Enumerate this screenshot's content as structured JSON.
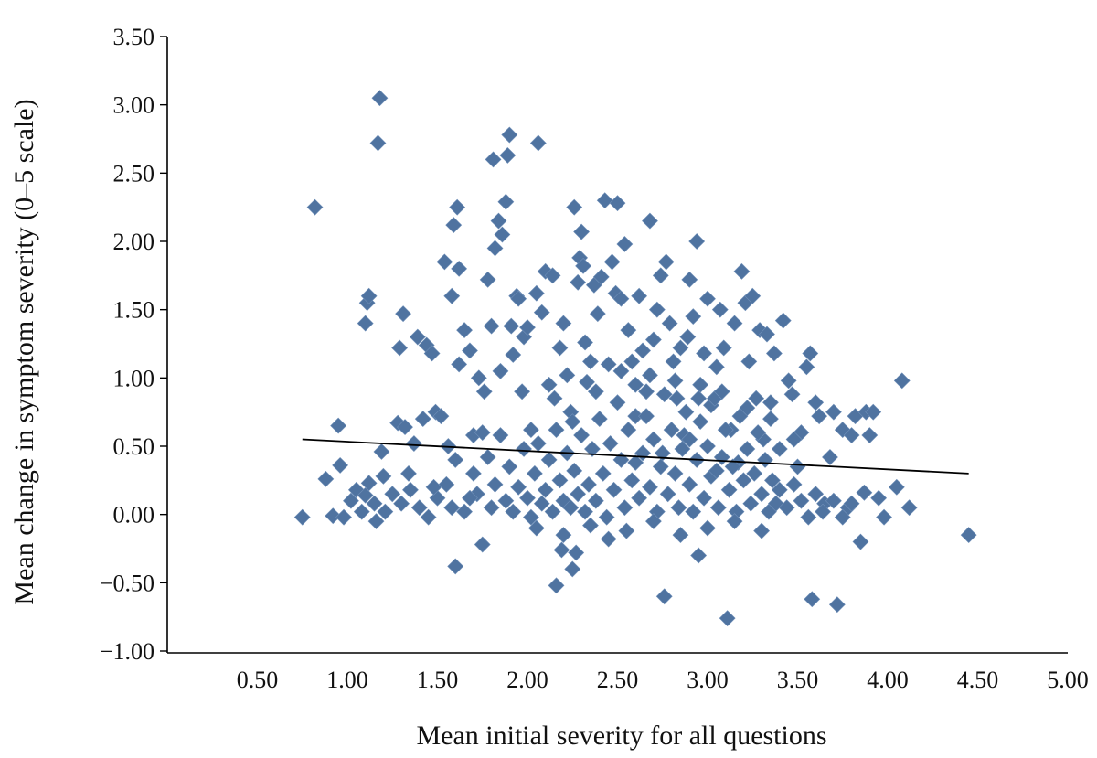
{
  "chart_data": {
    "type": "scatter",
    "title": "",
    "xlabel": "Mean initial severity for all questions",
    "ylabel": "Mean change in symptom severity (0–5 scale)",
    "xlim": [
      0,
      5
    ],
    "ylim": [
      -1,
      3.5
    ],
    "x_ticks": [
      "0.50",
      "1.00",
      "1.50",
      "2.00",
      "2.50",
      "3.00",
      "3.50",
      "4.00",
      "4.50",
      "5.00"
    ],
    "y_ticks": [
      "3.50",
      "3.00",
      "2.50",
      "2.00",
      "1.50",
      "1.00",
      "0.50",
      "0.00",
      "−0.50",
      "−1.00"
    ],
    "grid": false,
    "legend": "none",
    "colors": {
      "marker": "#4f73a0",
      "trendline": "#000000",
      "axis": "#000000"
    },
    "trendline": {
      "x": [
        0.75,
        4.45
      ],
      "y": [
        0.55,
        0.3
      ]
    },
    "series": [
      {
        "points": [
          [
            0.75,
            -0.02
          ],
          [
            0.82,
            2.25
          ],
          [
            0.88,
            0.26
          ],
          [
            0.92,
            -0.01
          ],
          [
            0.95,
            0.65
          ],
          [
            0.96,
            0.36
          ],
          [
            0.98,
            -0.02
          ],
          [
            1.02,
            0.1
          ],
          [
            1.05,
            0.18
          ],
          [
            1.08,
            0.02
          ],
          [
            1.1,
            0.14
          ],
          [
            1.1,
            1.4
          ],
          [
            1.11,
            1.55
          ],
          [
            1.12,
            1.6
          ],
          [
            1.12,
            0.23
          ],
          [
            1.15,
            0.08
          ],
          [
            1.16,
            -0.05
          ],
          [
            1.17,
            2.72
          ],
          [
            1.18,
            3.05
          ],
          [
            1.19,
            0.46
          ],
          [
            1.21,
            0.02
          ],
          [
            1.25,
            0.15
          ],
          [
            1.28,
            0.67
          ],
          [
            1.29,
            1.22
          ],
          [
            1.31,
            1.47
          ],
          [
            1.32,
            0.64
          ],
          [
            1.34,
            0.3
          ],
          [
            1.37,
            0.52
          ],
          [
            1.39,
            1.3
          ],
          [
            1.42,
            0.7
          ],
          [
            1.44,
            1.24
          ],
          [
            1.47,
            1.18
          ],
          [
            1.49,
            0.75
          ],
          [
            1.52,
            0.72
          ],
          [
            1.54,
            1.85
          ],
          [
            1.56,
            0.5
          ],
          [
            1.58,
            1.6
          ],
          [
            1.59,
            2.12
          ],
          [
            1.6,
            -0.38
          ],
          [
            1.61,
            2.25
          ],
          [
            1.62,
            1.8
          ],
          [
            1.62,
            1.1
          ],
          [
            1.65,
            1.35
          ],
          [
            1.68,
            1.2
          ],
          [
            1.7,
            0.58
          ],
          [
            1.73,
            1.0
          ],
          [
            1.75,
            -0.22
          ],
          [
            1.76,
            0.9
          ],
          [
            1.78,
            1.72
          ],
          [
            1.8,
            1.38
          ],
          [
            1.81,
            2.6
          ],
          [
            1.82,
            1.95
          ],
          [
            1.84,
            2.15
          ],
          [
            1.85,
            1.05
          ],
          [
            1.86,
            2.05
          ],
          [
            1.88,
            2.29
          ],
          [
            1.89,
            2.63
          ],
          [
            1.9,
            2.78
          ],
          [
            1.91,
            1.38
          ],
          [
            1.92,
            1.17
          ],
          [
            1.94,
            1.6
          ],
          [
            1.95,
            1.58
          ],
          [
            1.97,
            0.9
          ],
          [
            1.98,
            1.3
          ],
          [
            2.0,
            1.37
          ],
          [
            2.02,
            0.62
          ],
          [
            2.05,
            1.62
          ],
          [
            2.06,
            2.72
          ],
          [
            2.08,
            1.48
          ],
          [
            2.1,
            1.78
          ],
          [
            2.12,
            0.95
          ],
          [
            2.14,
            1.75
          ],
          [
            2.16,
            -0.52
          ],
          [
            2.18,
            1.22
          ],
          [
            2.19,
            -0.26
          ],
          [
            2.2,
            1.4
          ],
          [
            2.22,
            1.02
          ],
          [
            2.24,
            0.75
          ],
          [
            2.25,
            -0.4
          ],
          [
            2.26,
            2.25
          ],
          [
            2.27,
            -0.28
          ],
          [
            2.28,
            1.7
          ],
          [
            2.29,
            1.88
          ],
          [
            2.3,
            2.07
          ],
          [
            2.31,
            1.82
          ],
          [
            2.32,
            1.26
          ],
          [
            2.33,
            0.97
          ],
          [
            2.35,
            1.12
          ],
          [
            2.37,
            1.68
          ],
          [
            2.39,
            1.47
          ],
          [
            2.41,
            1.74
          ],
          [
            2.43,
            2.3
          ],
          [
            2.45,
            1.1
          ],
          [
            2.47,
            1.85
          ],
          [
            2.49,
            1.62
          ],
          [
            2.5,
            2.28
          ],
          [
            2.52,
            1.58
          ],
          [
            2.54,
            1.98
          ],
          [
            2.56,
            1.35
          ],
          [
            2.58,
            1.12
          ],
          [
            2.6,
            0.72
          ],
          [
            2.62,
            1.6
          ],
          [
            2.64,
            1.2
          ],
          [
            2.66,
            0.9
          ],
          [
            2.68,
            2.15
          ],
          [
            2.7,
            1.28
          ],
          [
            2.72,
            1.5
          ],
          [
            2.74,
            1.75
          ],
          [
            2.76,
            -0.6
          ],
          [
            2.77,
            1.85
          ],
          [
            2.79,
            1.4
          ],
          [
            2.81,
            1.12
          ],
          [
            2.83,
            0.85
          ],
          [
            2.85,
            1.22
          ],
          [
            2.87,
            0.58
          ],
          [
            2.89,
            1.3
          ],
          [
            2.9,
            1.72
          ],
          [
            2.92,
            1.45
          ],
          [
            2.94,
            2.0
          ],
          [
            2.95,
            -0.3
          ],
          [
            2.96,
            0.95
          ],
          [
            2.98,
            1.18
          ],
          [
            3.0,
            1.58
          ],
          [
            3.02,
            0.8
          ],
          [
            3.05,
            1.08
          ],
          [
            3.07,
            1.5
          ],
          [
            3.09,
            1.22
          ],
          [
            3.11,
            -0.76
          ],
          [
            3.13,
            0.62
          ],
          [
            3.15,
            1.4
          ],
          [
            3.17,
            0.38
          ],
          [
            3.19,
            1.78
          ],
          [
            3.21,
            1.55
          ],
          [
            3.23,
            1.12
          ],
          [
            3.25,
            1.6
          ],
          [
            3.27,
            0.85
          ],
          [
            3.29,
            1.35
          ],
          [
            3.31,
            0.55
          ],
          [
            3.33,
            1.32
          ],
          [
            3.35,
            0.7
          ],
          [
            3.37,
            1.18
          ],
          [
            3.4,
            0.48
          ],
          [
            3.42,
            1.42
          ],
          [
            3.45,
            0.98
          ],
          [
            3.47,
            0.88
          ],
          [
            3.5,
            0.35
          ],
          [
            3.52,
            0.6
          ],
          [
            3.55,
            1.08
          ],
          [
            3.57,
            1.18
          ],
          [
            3.58,
            -0.62
          ],
          [
            3.6,
            0.82
          ],
          [
            3.62,
            0.72
          ],
          [
            3.65,
            0.08
          ],
          [
            3.68,
            0.42
          ],
          [
            3.7,
            0.75
          ],
          [
            3.72,
            -0.66
          ],
          [
            3.75,
            0.62
          ],
          [
            3.78,
            0.05
          ],
          [
            3.8,
            0.58
          ],
          [
            3.82,
            0.72
          ],
          [
            3.85,
            -0.2
          ],
          [
            3.87,
            0.16
          ],
          [
            3.88,
            0.75
          ],
          [
            3.9,
            0.58
          ],
          [
            3.92,
            0.75
          ],
          [
            3.95,
            0.12
          ],
          [
            3.98,
            -0.02
          ],
          [
            4.05,
            0.2
          ],
          [
            4.08,
            0.98
          ],
          [
            4.12,
            0.05
          ],
          [
            4.45,
            -0.15
          ],
          [
            1.2,
            0.28
          ],
          [
            1.3,
            0.08
          ],
          [
            1.35,
            0.18
          ],
          [
            1.4,
            0.05
          ],
          [
            1.45,
            -0.02
          ],
          [
            1.5,
            0.12
          ],
          [
            1.55,
            0.22
          ],
          [
            1.65,
            0.02
          ],
          [
            1.7,
            0.3
          ],
          [
            1.72,
            0.15
          ],
          [
            1.78,
            0.42
          ],
          [
            1.8,
            0.05
          ],
          [
            1.82,
            0.22
          ],
          [
            1.85,
            0.58
          ],
          [
            1.88,
            0.1
          ],
          [
            1.9,
            0.35
          ],
          [
            1.92,
            0.02
          ],
          [
            1.95,
            0.2
          ],
          [
            1.98,
            0.48
          ],
          [
            2.0,
            0.12
          ],
          [
            2.02,
            -0.02
          ],
          [
            2.04,
            0.3
          ],
          [
            2.06,
            0.52
          ],
          [
            2.08,
            0.08
          ],
          [
            2.1,
            0.18
          ],
          [
            2.12,
            0.4
          ],
          [
            2.14,
            0.02
          ],
          [
            2.16,
            0.62
          ],
          [
            2.18,
            0.25
          ],
          [
            2.2,
            0.1
          ],
          [
            2.22,
            0.45
          ],
          [
            2.24,
            0.05
          ],
          [
            2.26,
            0.32
          ],
          [
            2.28,
            0.15
          ],
          [
            2.3,
            0.58
          ],
          [
            2.32,
            0.02
          ],
          [
            2.34,
            0.22
          ],
          [
            2.36,
            0.48
          ],
          [
            2.38,
            0.1
          ],
          [
            2.4,
            0.7
          ],
          [
            2.42,
            0.3
          ],
          [
            2.44,
            -0.02
          ],
          [
            2.46,
            0.52
          ],
          [
            2.48,
            0.18
          ],
          [
            2.5,
            0.82
          ],
          [
            2.52,
            0.4
          ],
          [
            2.54,
            0.05
          ],
          [
            2.56,
            0.62
          ],
          [
            2.58,
            0.25
          ],
          [
            2.6,
            0.95
          ],
          [
            2.62,
            0.12
          ],
          [
            2.64,
            0.45
          ],
          [
            2.66,
            0.72
          ],
          [
            2.68,
            0.2
          ],
          [
            2.7,
            0.55
          ],
          [
            2.72,
            0.02
          ],
          [
            2.74,
            0.35
          ],
          [
            2.76,
            0.88
          ],
          [
            2.78,
            0.15
          ],
          [
            2.8,
            0.62
          ],
          [
            2.82,
            0.3
          ],
          [
            2.84,
            0.05
          ],
          [
            2.86,
            0.48
          ],
          [
            2.88,
            0.75
          ],
          [
            2.9,
            0.22
          ],
          [
            2.92,
            0.02
          ],
          [
            2.94,
            0.4
          ],
          [
            2.96,
            0.68
          ],
          [
            2.98,
            0.12
          ],
          [
            3.0,
            0.5
          ],
          [
            3.02,
            0.28
          ],
          [
            3.04,
            0.85
          ],
          [
            3.06,
            0.05
          ],
          [
            3.08,
            0.42
          ],
          [
            3.1,
            0.62
          ],
          [
            3.12,
            0.18
          ],
          [
            3.14,
            0.35
          ],
          [
            3.16,
            0.02
          ],
          [
            3.18,
            0.72
          ],
          [
            3.2,
            0.25
          ],
          [
            3.22,
            0.48
          ],
          [
            3.24,
            0.08
          ],
          [
            3.26,
            0.3
          ],
          [
            3.28,
            0.6
          ],
          [
            3.3,
            0.15
          ],
          [
            3.32,
            0.4
          ],
          [
            3.34,
            0.02
          ],
          [
            3.36,
            0.25
          ],
          [
            3.38,
            0.08
          ],
          [
            3.4,
            0.18
          ],
          [
            3.44,
            0.05
          ],
          [
            3.48,
            0.22
          ],
          [
            3.52,
            0.1
          ],
          [
            3.56,
            -0.02
          ],
          [
            3.6,
            0.15
          ],
          [
            3.64,
            0.02
          ],
          [
            3.7,
            0.1
          ],
          [
            3.75,
            -0.02
          ],
          [
            3.8,
            0.08
          ],
          [
            2.05,
            -0.1
          ],
          [
            2.2,
            -0.15
          ],
          [
            2.35,
            -0.08
          ],
          [
            2.55,
            -0.12
          ],
          [
            2.7,
            -0.05
          ],
          [
            2.85,
            -0.15
          ],
          [
            3.0,
            -0.1
          ],
          [
            3.15,
            -0.05
          ],
          [
            3.3,
            -0.12
          ],
          [
            2.45,
            -0.18
          ],
          [
            2.15,
            0.85
          ],
          [
            2.25,
            0.68
          ],
          [
            2.38,
            0.9
          ],
          [
            2.52,
            1.05
          ],
          [
            2.68,
            1.02
          ],
          [
            2.82,
            0.98
          ],
          [
            2.95,
            0.85
          ],
          [
            3.08,
            0.9
          ],
          [
            3.22,
            0.78
          ],
          [
            3.35,
            0.82
          ],
          [
            3.48,
            0.55
          ],
          [
            2.6,
            0.38
          ],
          [
            2.75,
            0.45
          ],
          [
            2.9,
            0.55
          ],
          [
            3.05,
            0.32
          ],
          [
            1.6,
            0.4
          ],
          [
            1.75,
            0.6
          ],
          [
            1.68,
            0.12
          ],
          [
            1.58,
            0.05
          ],
          [
            1.48,
            0.2
          ]
        ]
      }
    ]
  }
}
